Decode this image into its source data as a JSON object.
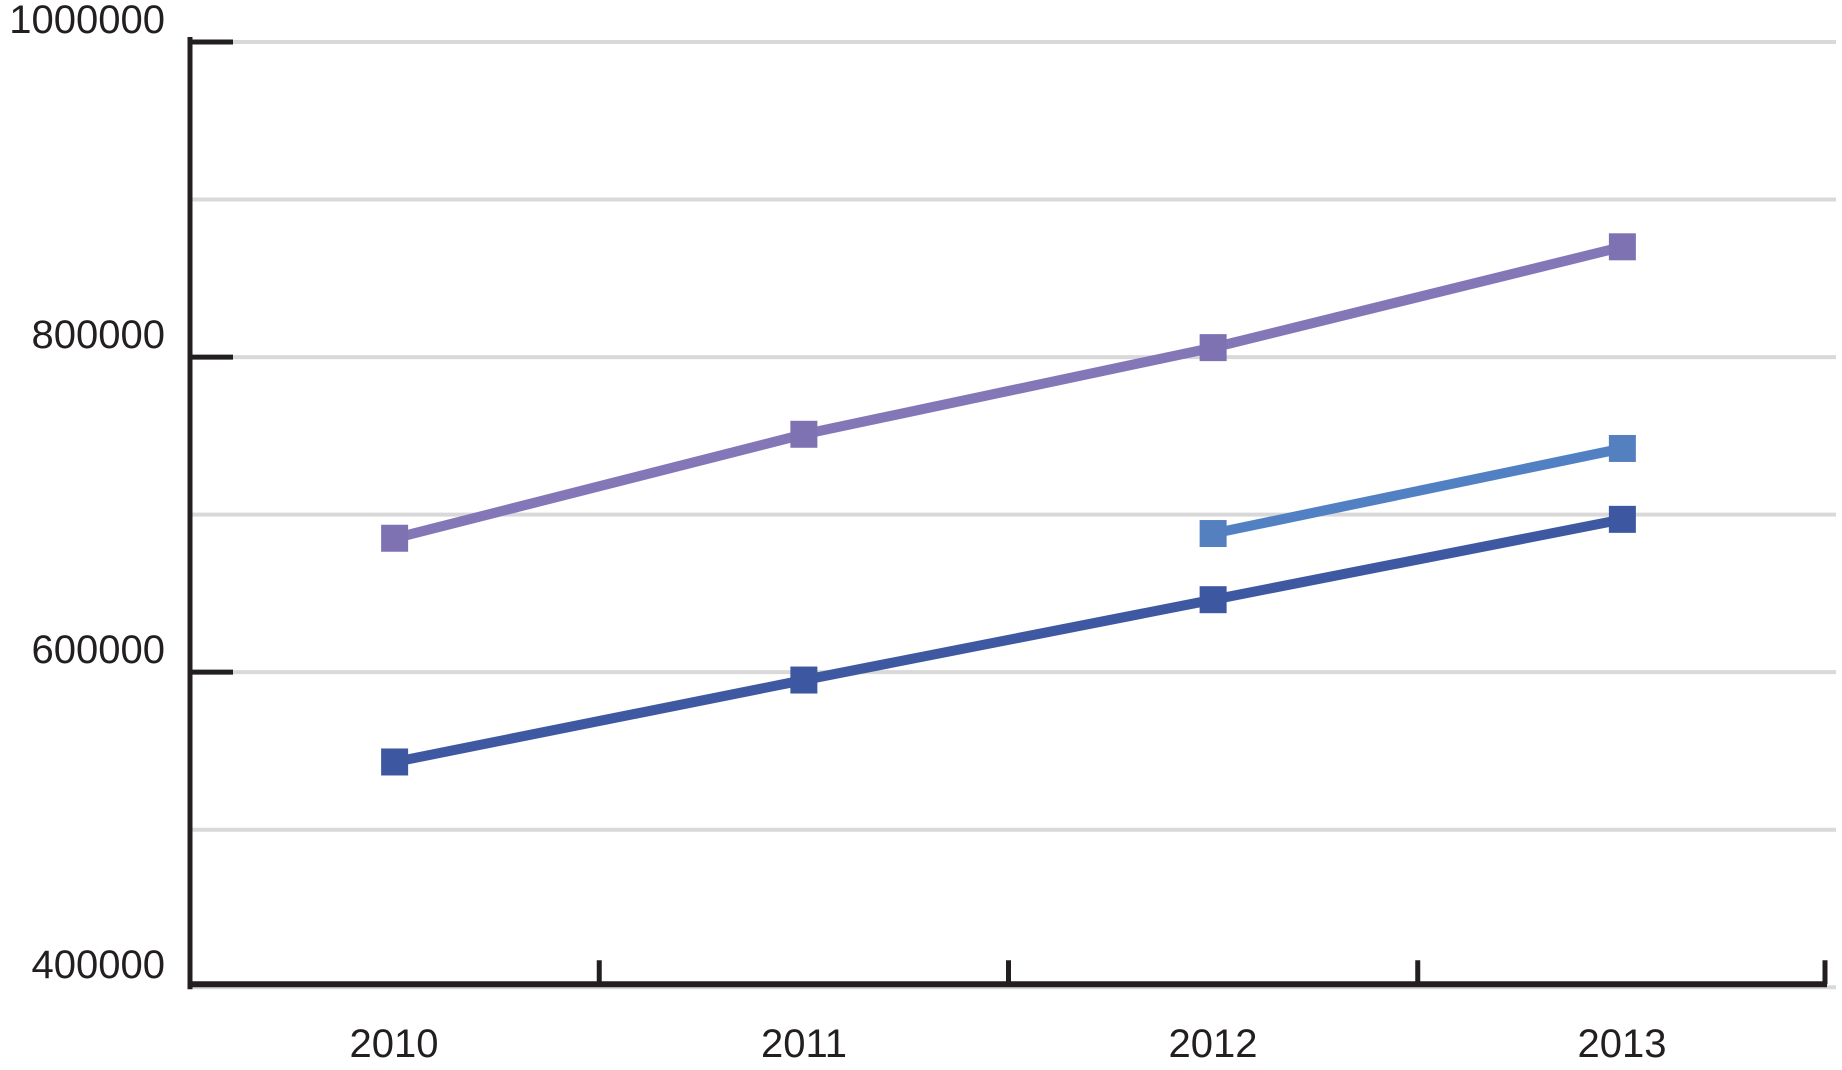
{
  "chart_data": {
    "type": "line",
    "title": "",
    "subtitle": "",
    "xlabel": "",
    "ylabel": "",
    "categories": [
      "2010",
      "2011",
      "2012",
      "2013"
    ],
    "series": [
      {
        "name": "purple-series",
        "line_color": "#8477B8",
        "marker_color": "#7F72B3",
        "marker": "square",
        "values": [
          685000,
          751000,
          806000,
          870000
        ]
      },
      {
        "name": "medium-blue-series",
        "line_color": "#5181C3",
        "marker_color": "#5580C0",
        "marker": "square",
        "values": [
          null,
          null,
          688000,
          742000
        ]
      },
      {
        "name": "dark-blue-series",
        "line_color": "#3E58A1",
        "marker_color": "#3D57A0",
        "marker": "square",
        "values": [
          543000,
          595000,
          646000,
          697000
        ]
      }
    ],
    "ylim": [
      400000,
      1000000
    ],
    "grid_step": 100000,
    "y_ticks": [
      1000000,
      800000,
      600000,
      400000
    ],
    "y_tick_labels": [
      "1000000",
      "800000",
      "600000",
      "400000"
    ],
    "x_tick_labels": [
      "2010",
      "2011",
      "2012",
      "2013"
    ],
    "grid": "horizontal gridlines every 100000, light gray",
    "legend": "none",
    "colors": {
      "axis": "#231F20",
      "gridline": "#D9D9D9",
      "tick_label_text": "#231F20",
      "background": "#FFFFFF"
    }
  }
}
